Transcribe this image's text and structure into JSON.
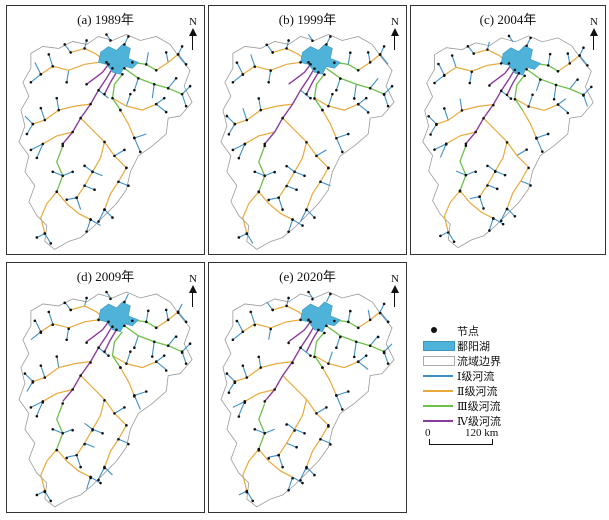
{
  "panels": [
    {
      "title": "(a) 1989年",
      "variant": 0
    },
    {
      "title": "(b) 1999年",
      "variant": 1
    },
    {
      "title": "(c) 2004年",
      "variant": 2
    },
    {
      "title": "(d) 2009年",
      "variant": 3
    },
    {
      "title": "(e) 2020年",
      "variant": 4
    }
  ],
  "north_label": "N",
  "legend": {
    "node": "节点",
    "lake": "鄱阳湖",
    "basin": "流域边界",
    "order1": "Ⅰ级河流",
    "order2": "Ⅱ级河流",
    "order3": "Ⅲ级河流",
    "order4": "Ⅳ级河流"
  },
  "scale": {
    "start": "0",
    "end": "120 km"
  },
  "colors": {
    "lake": "#4fb3d9",
    "order1": "#3d8fc6",
    "order2": "#e8a93a",
    "order3": "#6cc04a",
    "order4": "#8b3a9c",
    "node": "#111111",
    "basin_border": "#9a9a9a"
  }
}
